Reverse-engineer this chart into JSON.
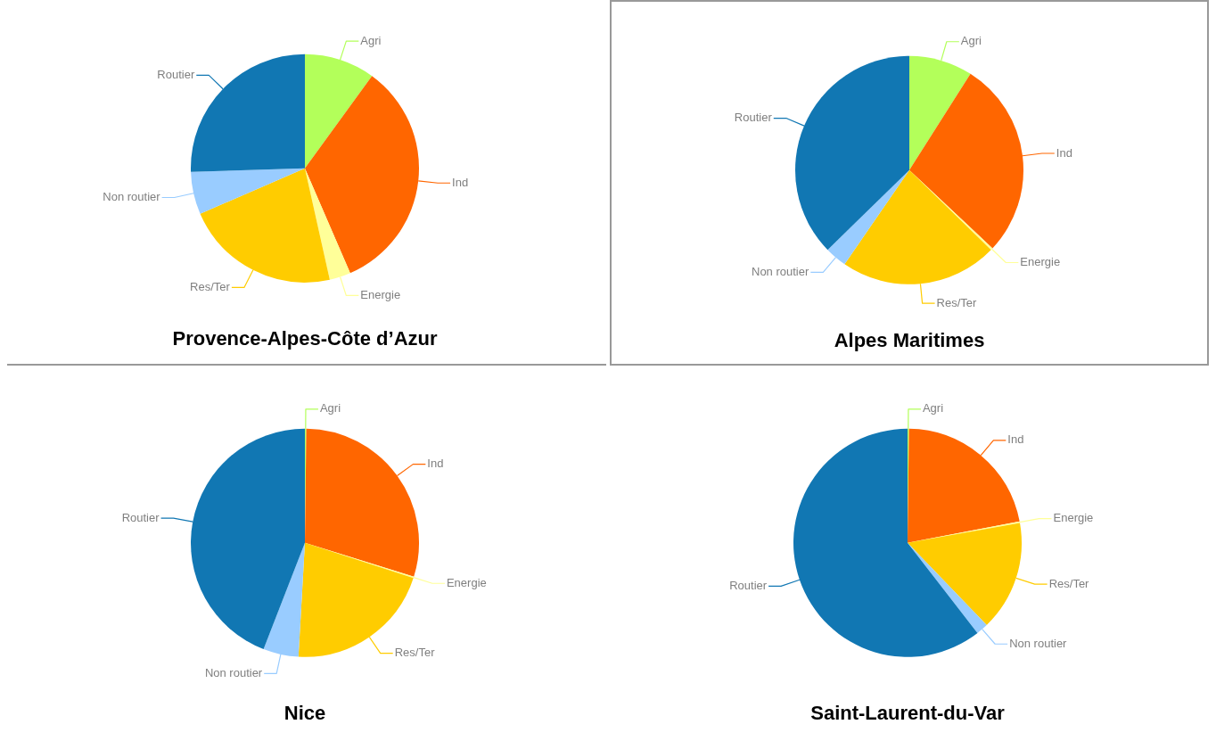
{
  "chart_data": [
    {
      "type": "pie",
      "title": "Provence-Alpes-Côte d’Azur",
      "categories": [
        "Agri",
        "Ind",
        "Energie",
        "Res/Ter",
        "Non routier",
        "Routier"
      ],
      "values": [
        10,
        33.5,
        3,
        22,
        6,
        25.5
      ],
      "colors": [
        "#b3ff5a",
        "#ff6600",
        "#ffff99",
        "#ffcc00",
        "#99ccff",
        "#1177b3"
      ]
    },
    {
      "type": "pie",
      "title": "Alpes Maritimes",
      "categories": [
        "Agri",
        "Ind",
        "Energie",
        "Res/Ter",
        "Non routier",
        "Routier"
      ],
      "values": [
        9,
        28,
        0.3,
        22.3,
        3.1,
        37.3
      ],
      "colors": [
        "#b3ff5a",
        "#ff6600",
        "#ffff99",
        "#ffcc00",
        "#99ccff",
        "#1177b3"
      ]
    },
    {
      "type": "pie",
      "title": "Nice",
      "categories": [
        "Agri",
        "Ind",
        "Energie",
        "Res/Ter",
        "Non routier",
        "Routier"
      ],
      "values": [
        0.2,
        29.6,
        0.2,
        20.9,
        5,
        44.1
      ],
      "colors": [
        "#b3ff5a",
        "#ff6600",
        "#ffff99",
        "#ffcc00",
        "#99ccff",
        "#1177b3"
      ]
    },
    {
      "type": "pie",
      "title": "Saint-Laurent-du-Var",
      "categories": [
        "Agri",
        "Ind",
        "Energie",
        "Res/Ter",
        "Non routier",
        "Routier"
      ],
      "values": [
        0.2,
        21.8,
        0.2,
        15.6,
        1.7,
        60.5
      ],
      "colors": [
        "#b3ff5a",
        "#ff6600",
        "#ffff99",
        "#ffcc00",
        "#99ccff",
        "#1177b3"
      ]
    }
  ]
}
